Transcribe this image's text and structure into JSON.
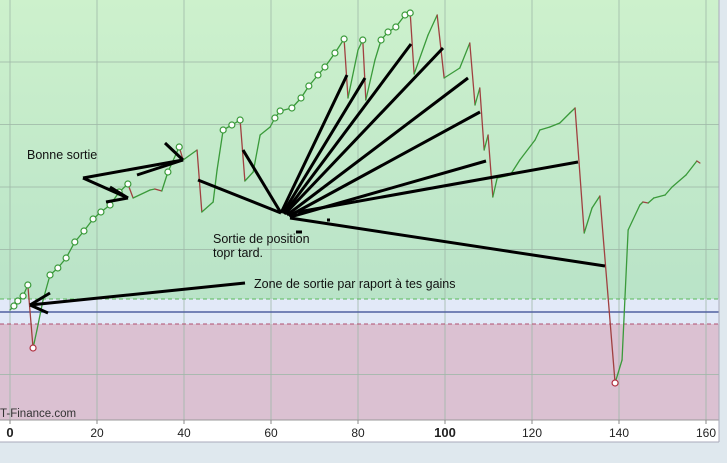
{
  "chart_data": {
    "type": "line",
    "title": "",
    "xlabel": "",
    "ylabel": "",
    "xlim": [
      -2,
      163
    ],
    "ylim": [
      -86,
      250
    ],
    "x_ticks": [
      "0",
      "20",
      "40",
      "60",
      "80",
      "100",
      "120",
      "140",
      "160"
    ],
    "x_ticks_bold": [
      "0",
      "100"
    ],
    "grid": true,
    "legend": "none",
    "bands": {
      "upper_threshold": 10,
      "center": 0,
      "lower_threshold": -10
    },
    "colors": {
      "rising": "#3a9a3a",
      "falling": "#a04040",
      "zone_gain": "#c4ebc9",
      "zone_neutral": "#e2e9f8",
      "zone_loss": "#dcc2d2",
      "center_line": "#5060a0",
      "annotation": "#000000"
    },
    "marker_legend": {
      "1": "green circle",
      "2": "red circle"
    },
    "points": [
      [
        0,
        1.6,
        0
      ],
      [
        0.9,
        4.8,
        1
      ],
      [
        1.8,
        8.8,
        1
      ],
      [
        3.0,
        12.8,
        1
      ],
      [
        4.1,
        21.6,
        1
      ],
      [
        5.3,
        -28.8,
        2
      ],
      [
        6.2,
        -14.4,
        0
      ],
      [
        7.6,
        9.6,
        0
      ],
      [
        9.2,
        29.6,
        1
      ],
      [
        11.0,
        35.2,
        1
      ],
      [
        12.9,
        43.2,
        1
      ],
      [
        14.9,
        56,
        1
      ],
      [
        17.0,
        64.8,
        1
      ],
      [
        19.1,
        74.4,
        1
      ],
      [
        20.9,
        80,
        1
      ],
      [
        23.0,
        85.6,
        1
      ],
      [
        25.1,
        96,
        1
      ],
      [
        27.1,
        102.4,
        1
      ],
      [
        28.3,
        91.2,
        0
      ],
      [
        32.2,
        97.6,
        0
      ],
      [
        33.3,
        98.4,
        0
      ],
      [
        34.9,
        96.8,
        0
      ],
      [
        36.3,
        112,
        1
      ],
      [
        38.9,
        132,
        1
      ],
      [
        39.8,
        121.6,
        0
      ],
      [
        43.0,
        129.6,
        0
      ],
      [
        44.1,
        80,
        0
      ],
      [
        46.7,
        88,
        0
      ],
      [
        47.6,
        113.6,
        0
      ],
      [
        49.0,
        145.6,
        1
      ],
      [
        51.0,
        149.6,
        1
      ],
      [
        52.9,
        153.6,
        1
      ],
      [
        54.0,
        104.8,
        0
      ],
      [
        55.9,
        112,
        0
      ],
      [
        57.5,
        141.6,
        0
      ],
      [
        59.8,
        148,
        0
      ],
      [
        60.9,
        155.2,
        1
      ],
      [
        62.1,
        160.8,
        1
      ],
      [
        64.8,
        163.2,
        1
      ],
      [
        66.9,
        171.2,
        1
      ],
      [
        68.7,
        180.8,
        1
      ],
      [
        70.8,
        189.6,
        1
      ],
      [
        72.4,
        196,
        1
      ],
      [
        74.7,
        207.2,
        1
      ],
      [
        76.8,
        218.4,
        1
      ],
      [
        77.7,
        171.2,
        0
      ],
      [
        80.0,
        209.6,
        0
      ],
      [
        81.1,
        217.6,
        1
      ],
      [
        81.8,
        169.6,
        0
      ],
      [
        83.9,
        201.6,
        0
      ],
      [
        85.3,
        217.6,
        1
      ],
      [
        86.9,
        224,
        1
      ],
      [
        88.7,
        228,
        1
      ],
      [
        90.8,
        237.6,
        1
      ],
      [
        92.0,
        239.2,
        1
      ],
      [
        92.9,
        190.4,
        0
      ],
      [
        96.1,
        221.6,
        0
      ],
      [
        98.2,
        237.6,
        0
      ],
      [
        99.8,
        187.2,
        0
      ],
      [
        103.4,
        195.2,
        0
      ],
      [
        105.7,
        215.2,
        0
      ],
      [
        106.9,
        165.6,
        0
      ],
      [
        108.0,
        179.2,
        0
      ],
      [
        109.0,
        129.6,
        0
      ],
      [
        109.9,
        141.6,
        0
      ],
      [
        111.0,
        92,
        0
      ],
      [
        112.0,
        107.2,
        0
      ],
      [
        115.0,
        109.6,
        0
      ],
      [
        117.2,
        121.6,
        0
      ],
      [
        120.7,
        137.6,
        0
      ],
      [
        121.8,
        145.6,
        0
      ],
      [
        124.1,
        148,
        0
      ],
      [
        126.4,
        151.2,
        0
      ],
      [
        128.7,
        159.2,
        0
      ],
      [
        129.9,
        163.2,
        0
      ],
      [
        132.0,
        63.2,
        0
      ],
      [
        133.8,
        83.2,
        0
      ],
      [
        135.6,
        92.8,
        0
      ],
      [
        139.1,
        -56.8,
        2
      ],
      [
        140.7,
        -38.4,
        0
      ],
      [
        142.1,
        65.6,
        0
      ],
      [
        144.8,
        85.6,
        0
      ],
      [
        145.5,
        88,
        0
      ],
      [
        146.7,
        87.2,
        0
      ],
      [
        148.0,
        91.2,
        0
      ],
      [
        150.6,
        93.6,
        0
      ],
      [
        152.2,
        100,
        0
      ],
      [
        155.4,
        109.6,
        0
      ],
      [
        157.9,
        120.8,
        0
      ],
      [
        158.6,
        119.2,
        0
      ]
    ],
    "annotations": {
      "good_exit": "Bonne sortie",
      "late_exit_line1": "Sortie de position",
      "late_exit_line2": "topr tard.",
      "exit_zone": "Zone de sortie par raport à tes gains"
    },
    "watermark": "T-Finance.com"
  }
}
